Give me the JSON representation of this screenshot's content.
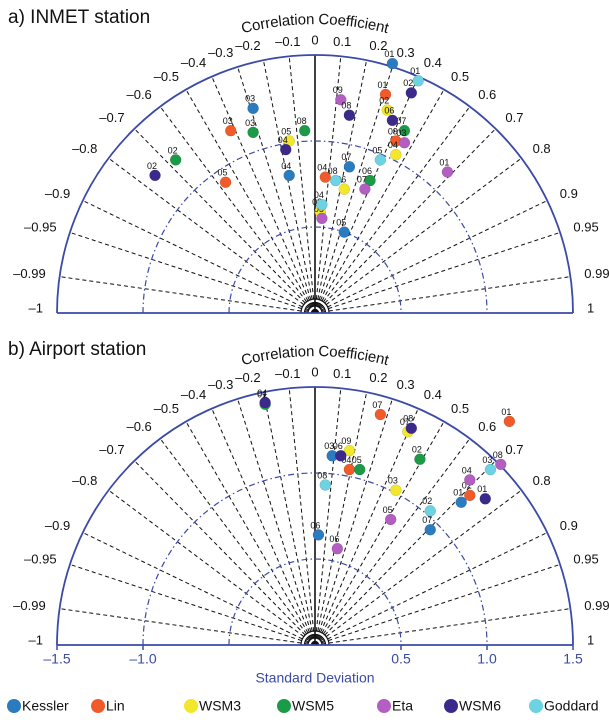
{
  "chart_data": [
    {
      "type": "taylor",
      "title": "a) INMET station",
      "rlabel": "Correlation Coefficient",
      "xlim": [
        -1.5,
        1.5
      ],
      "sd_grid": [
        0.5,
        1.0
      ],
      "rticks": [
        {
          "value": -1,
          "label": "–1"
        },
        {
          "value": -0.99,
          "label": "–0.99"
        },
        {
          "value": -0.95,
          "label": "–0.95"
        },
        {
          "value": -0.9,
          "label": "–0.9"
        },
        {
          "value": -0.8,
          "label": "–0.8"
        },
        {
          "value": -0.7,
          "label": "–0.7"
        },
        {
          "value": -0.6,
          "label": "–0.6"
        },
        {
          "value": -0.5,
          "label": "–0.5"
        },
        {
          "value": -0.4,
          "label": "–0.4"
        },
        {
          "value": -0.3,
          "label": "–0.3"
        },
        {
          "value": -0.2,
          "label": "–0.2"
        },
        {
          "value": -0.1,
          "label": "–0.1"
        },
        0,
        0.1,
        0.2,
        0.3,
        0.4,
        0.5,
        0.6,
        0.7,
        0.8,
        0.9,
        0.95,
        0.99,
        1
      ],
      "series": [
        {
          "name": "Kessler",
          "color": "#2b7bbf",
          "x": [
            -0.36,
            0.17,
            0.45,
            0.2,
            -0.15
          ],
          "y": [
            1.19,
            0.47,
            1.45,
            0.85,
            0.8
          ],
          "labels": [
            "03",
            "05",
            "01",
            "07",
            "04"
          ]
        },
        {
          "name": "Lin",
          "color": "#f15a29",
          "x": [
            -0.49,
            -0.52,
            0.41,
            0.06,
            0.47
          ],
          "y": [
            1.06,
            0.76,
            1.27,
            0.79,
            1.0
          ],
          "labels": [
            "03",
            "05",
            "01",
            "04",
            "09"
          ]
        },
        {
          "name": "WSM3",
          "color": "#f3e72b",
          "x": [
            -0.15,
            0.17,
            0.47,
            0.42,
            0.03
          ],
          "y": [
            1.0,
            0.72,
            0.92,
            1.18,
            0.59
          ],
          "labels": [
            "05",
            "06",
            "04",
            "02",
            "09"
          ]
        },
        {
          "name": "WSM5",
          "color": "#1b9a47",
          "x": [
            -0.81,
            -0.36,
            -0.06,
            0.52,
            0.32
          ],
          "y": [
            0.89,
            1.05,
            1.06,
            1.06,
            0.77
          ],
          "labels": [
            "02",
            "03",
            "08",
            "07",
            "06"
          ]
        },
        {
          "name": "Eta",
          "color": "#b35fc1",
          "x": [
            0.77,
            0.15,
            0.04,
            0.52,
            0.29
          ],
          "y": [
            0.82,
            1.24,
            0.55,
            0.99,
            0.72
          ],
          "labels": [
            "01",
            "09",
            "05",
            "03",
            "07"
          ]
        },
        {
          "name": "WSM6",
          "color": "#3b2a8c",
          "x": [
            -0.93,
            0.56,
            -0.17,
            0.2,
            0.45
          ],
          "y": [
            0.8,
            1.28,
            0.95,
            1.15,
            1.12
          ],
          "labels": [
            "02",
            "02",
            "04",
            "08",
            "06"
          ]
        },
        {
          "name": "Goddard",
          "color": "#6dd2e2",
          "x": [
            0.6,
            0.04,
            0.12,
            0.38
          ],
          "y": [
            1.35,
            0.63,
            0.77,
            0.89
          ],
          "labels": [
            "01",
            "04",
            "08",
            "05"
          ]
        }
      ]
    },
    {
      "type": "taylor",
      "title": "b) Airport station",
      "rlabel": "Correlation Coefficient",
      "xlim": [
        -1.5,
        1.5
      ],
      "sd_grid": [
        0.5,
        1.0
      ],
      "xlabel": "Standard Deviation",
      "xticks": [
        {
          "value": -1.5,
          "label": "–1.5"
        },
        {
          "value": -1.0,
          "label": "–1.0"
        },
        0.5,
        {
          "value": 1.0,
          "label": "1.0"
        },
        1.5
      ],
      "rticks": [
        {
          "value": -1,
          "label": "–1"
        },
        {
          "value": -0.99,
          "label": "–0.99"
        },
        {
          "value": -0.95,
          "label": "–0.95"
        },
        {
          "value": -0.9,
          "label": "–0.9"
        },
        {
          "value": -0.8,
          "label": "–0.8"
        },
        {
          "value": -0.7,
          "label": "–0.7"
        },
        {
          "value": -0.6,
          "label": "–0.6"
        },
        {
          "value": -0.5,
          "label": "–0.5"
        },
        {
          "value": -0.4,
          "label": "–0.4"
        },
        {
          "value": -0.3,
          "label": "–0.3"
        },
        {
          "value": -0.2,
          "label": "–0.2"
        },
        {
          "value": -0.1,
          "label": "–0.1"
        },
        0,
        0.1,
        0.2,
        0.3,
        0.4,
        0.5,
        0.6,
        0.7,
        0.8,
        0.9,
        0.95,
        0.99,
        1
      ],
      "series": [
        {
          "color": "#2b7bbf",
          "x": [
            0.02,
            0.85,
            0.67,
            0.1
          ],
          "y": [
            0.64,
            0.83,
            0.67,
            1.1
          ],
          "labels": [
            "06",
            "01",
            "07",
            "03"
          ]
        },
        {
          "color": "#f15a29",
          "x": [
            1.13,
            0.9,
            0.38,
            0.2
          ],
          "y": [
            1.3,
            0.87,
            1.34,
            1.02
          ],
          "labels": [
            "01",
            "02",
            "07",
            "04"
          ]
        },
        {
          "color": "#f3e72b",
          "x": [
            0.54,
            0.2,
            0.47
          ],
          "y": [
            1.24,
            1.13,
            0.9
          ],
          "labels": [
            "07",
            "09",
            "03"
          ]
        },
        {
          "color": "#1b9a47",
          "x": [
            -0.29,
            0.26,
            0.61
          ],
          "y": [
            1.4,
            1.02,
            1.08
          ],
          "labels": [
            "01",
            "05",
            "02"
          ]
        },
        {
          "color": "#b35fc1",
          "x": [
            1.08,
            0.44,
            0.13,
            0.9
          ],
          "y": [
            1.05,
            0.73,
            0.56,
            0.96
          ],
          "labels": [
            "08",
            "05",
            "06",
            "04"
          ]
        },
        {
          "color": "#3b2a8c",
          "x": [
            0.56,
            -0.29,
            0.15,
            0.99
          ],
          "y": [
            1.26,
            1.41,
            1.1,
            0.85
          ],
          "labels": [
            "08",
            "04",
            "06",
            "01"
          ]
        },
        {
          "color": "#6dd2e2",
          "x": [
            1.02,
            0.06,
            0.67
          ],
          "y": [
            1.02,
            0.93,
            0.78
          ],
          "labels": [
            "03",
            "08",
            "02"
          ]
        }
      ]
    }
  ]
}
